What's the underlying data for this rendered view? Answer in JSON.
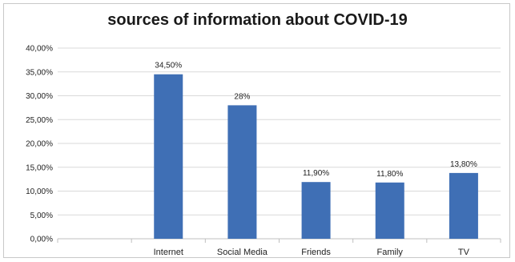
{
  "chart_data": {
    "type": "bar",
    "title": "sources of information about COVID-19",
    "categories": [
      "",
      "Internet",
      "Social Media",
      "Friends",
      "Family",
      "TV"
    ],
    "values": [
      null,
      34.5,
      28,
      11.9,
      11.8,
      13.8
    ],
    "data_labels": [
      "",
      "34,50%",
      "28%",
      "11,90%",
      "11,80%",
      "13,80%"
    ],
    "ylim": [
      0,
      40
    ],
    "yticks": [
      0,
      5,
      10,
      15,
      20,
      25,
      30,
      35,
      40
    ],
    "ytick_labels": [
      "0,00%",
      "5,00%",
      "10,00%",
      "15,00%",
      "20,00%",
      "25,00%",
      "30,00%",
      "35,00%",
      "40,00%"
    ],
    "grid": true,
    "bar_color": "#3f6fb5",
    "grid_color": "#d9d9d9"
  }
}
